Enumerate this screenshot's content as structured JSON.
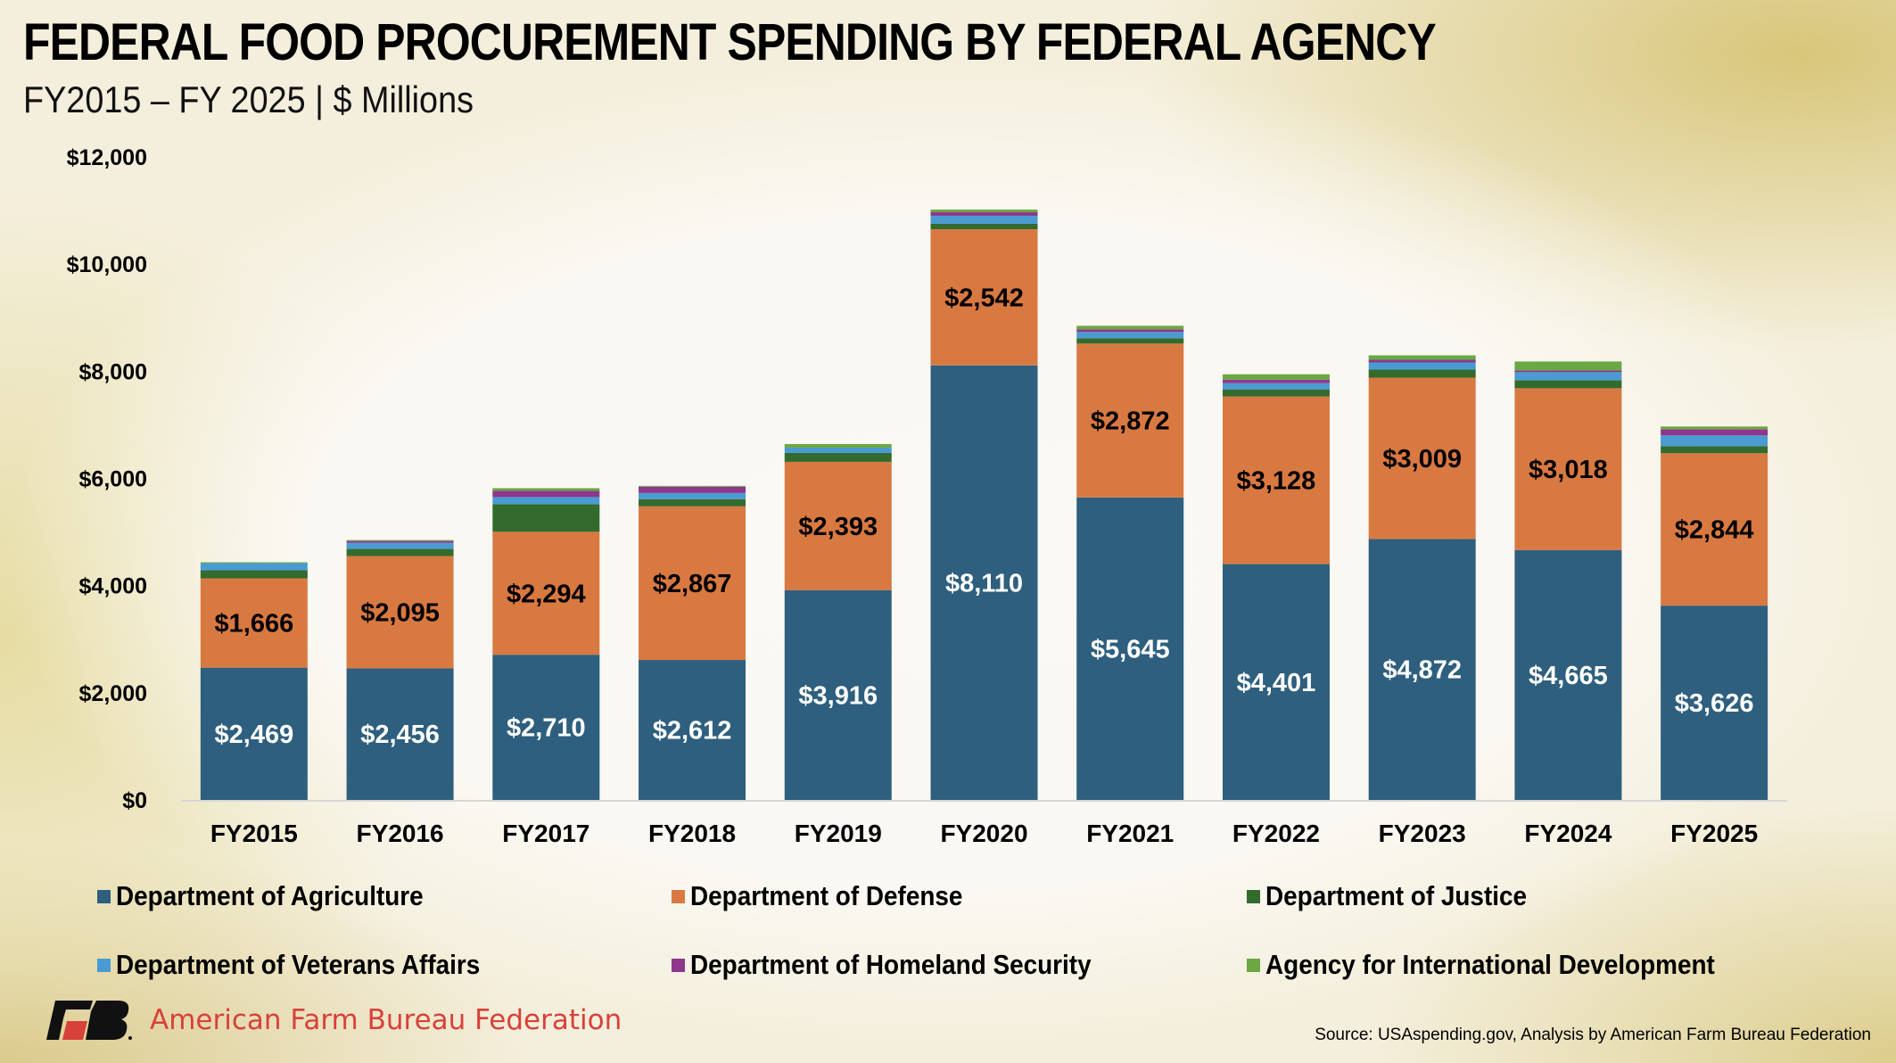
{
  "header": {
    "title": "FEDERAL FOOD PROCUREMENT SPENDING BY FEDERAL AGENCY",
    "subtitle": "FY2015 – FY 2025 | $ Millions"
  },
  "footer": {
    "logo_text": "American Farm Bureau Federation",
    "logo_mark": "FB",
    "source": "Source: USAspending.gov, Analysis by American Farm Bureau Federation"
  },
  "chart_data": {
    "type": "bar",
    "stacked": true,
    "title": "FEDERAL FOOD PROCUREMENT SPENDING BY FEDERAL AGENCY",
    "subtitle": "FY2015 – FY 2025 | $ Millions",
    "xlabel": "",
    "ylabel": "",
    "ylim": [
      0,
      12000
    ],
    "yticks": [
      0,
      2000,
      4000,
      6000,
      8000,
      10000,
      12000
    ],
    "ytick_labels": [
      "$0",
      "$2,000",
      "$4,000",
      "$6,000",
      "$8,000",
      "$10,000",
      "$12,000"
    ],
    "grid": false,
    "legend_position": "bottom",
    "categories": [
      "FY2015",
      "FY2016",
      "FY2017",
      "FY2018",
      "FY2019",
      "FY2020",
      "FY2021",
      "FY2022",
      "FY2023",
      "FY2024",
      "FY2025"
    ],
    "series": [
      {
        "name": "Department of Agriculture",
        "color": "#2e5f7e",
        "label_color": "#ffffff",
        "labeled": true,
        "values": [
          2469,
          2456,
          2710,
          2612,
          3916,
          8110,
          5645,
          4401,
          4872,
          4665,
          3626
        ]
      },
      {
        "name": "Department of Defense",
        "color": "#d97942",
        "label_color": "#000000",
        "labeled": true,
        "values": [
          1666,
          2095,
          2294,
          2867,
          2393,
          2542,
          2872,
          3128,
          3009,
          3018,
          2844
        ]
      },
      {
        "name": "Department of Justice",
        "color": "#336b2e",
        "labeled": false,
        "values": [
          150,
          133,
          515,
          133,
          166,
          100,
          100,
          133,
          150,
          150,
          133
        ]
      },
      {
        "name": "Department of Veterans Affairs",
        "color": "#4a9bd1",
        "labeled": false,
        "values": [
          133,
          116,
          133,
          116,
          100,
          150,
          116,
          116,
          133,
          150,
          200
        ]
      },
      {
        "name": "Department of Homeland Security",
        "color": "#8e378d",
        "labeled": false,
        "values": [
          0,
          33,
          116,
          116,
          0,
          66,
          50,
          66,
          50,
          33,
          116
        ]
      },
      {
        "name": "Agency for International Development",
        "color": "#6aa843",
        "labeled": false,
        "values": [
          17,
          17,
          50,
          17,
          66,
          50,
          66,
          100,
          83,
          166,
          50
        ]
      }
    ]
  },
  "legend": {
    "items": [
      {
        "label": "Department of Agriculture",
        "color": "#2e5f7e"
      },
      {
        "label": "Department of Defense",
        "color": "#d97942"
      },
      {
        "label": "Department of Justice",
        "color": "#336b2e"
      },
      {
        "label": "Department of Veterans Affairs",
        "color": "#4a9bd1"
      },
      {
        "label": "Department of Homeland Security",
        "color": "#8e378d"
      },
      {
        "label": "Agency for International Development",
        "color": "#6aa843"
      }
    ]
  }
}
